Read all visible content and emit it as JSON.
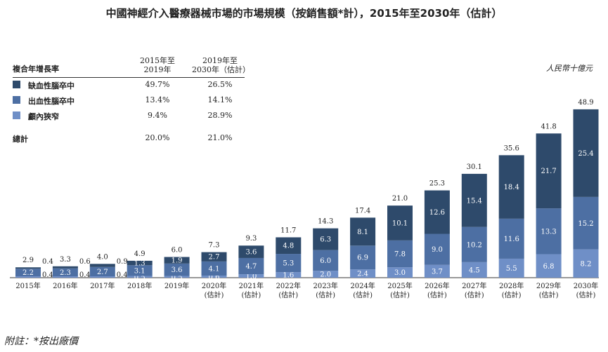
{
  "title": "中國神經介入醫療器械市場的市場規模（按銷售額*計），2015年至2030年（估計）",
  "unit": "人民幣十億元",
  "footnote": "附註：*按出廠價",
  "cagr": {
    "label": "複合年增長率",
    "col1": [
      "2015年至",
      "2019年"
    ],
    "col2": [
      "2019年至",
      "2030年（估計）"
    ],
    "rows": [
      {
        "name": "缺血性腦卒中",
        "color": "#2e4a6b",
        "v1": "49.7%",
        "v2": "26.5%"
      },
      {
        "name": "出血性腦卒中",
        "color": "#4d6fa3",
        "v1": "13.4%",
        "v2": "14.1%"
      },
      {
        "name": "顱內狹窄",
        "color": "#6f8fc7",
        "v1": "9.4%",
        "v2": "28.9%"
      }
    ],
    "total": {
      "name": "總計",
      "v1": "20.0%",
      "v2": "21.0%"
    }
  },
  "chart_data": {
    "type": "bar",
    "stacked": true,
    "categories": [
      "2015年",
      "2016年",
      "2017年",
      "2018年",
      "2019年",
      "2020年",
      "2021年",
      "2022年",
      "2023年",
      "2024年",
      "2025年",
      "2026年",
      "2027年",
      "2028年",
      "2029年",
      "2030年"
    ],
    "sublabels": [
      "",
      "",
      "",
      "",
      "",
      "(估計)",
      "(估計)",
      "(估計)",
      "(估計)",
      "(估計)",
      "(估計)",
      "(估計)",
      "(估計)",
      "(估計)",
      "(估計)",
      "(估計)"
    ],
    "series": [
      {
        "name": "顱內狹窄",
        "color": "#6f8fc7",
        "values": [
          0.4,
          0.4,
          0.4,
          0.5,
          0.5,
          0.6,
          1.0,
          1.6,
          2.0,
          2.4,
          3.0,
          3.7,
          4.5,
          5.5,
          6.8,
          8.2
        ]
      },
      {
        "name": "出血性腦卒中",
        "color": "#4d6fa3",
        "values": [
          2.2,
          2.3,
          2.7,
          3.1,
          3.6,
          4.1,
          4.7,
          5.3,
          6.0,
          6.9,
          7.8,
          9.0,
          10.2,
          11.6,
          13.3,
          15.2
        ]
      },
      {
        "name": "缺血性腦卒中",
        "color": "#2e4a6b",
        "values": [
          0.4,
          0.6,
          0.9,
          1.3,
          1.9,
          2.7,
          3.6,
          4.8,
          6.3,
          8.1,
          10.1,
          12.6,
          15.4,
          18.4,
          21.7,
          25.4
        ]
      }
    ],
    "totals": [
      "2.9",
      "3.3",
      "4.0",
      "4.9",
      "6.0",
      "7.3",
      "9.3",
      "11.7",
      "14.3",
      "17.4",
      "21.0",
      "25.3",
      "30.1",
      "35.6",
      "41.8",
      "48.9"
    ],
    "ylim": [
      0,
      50
    ]
  }
}
